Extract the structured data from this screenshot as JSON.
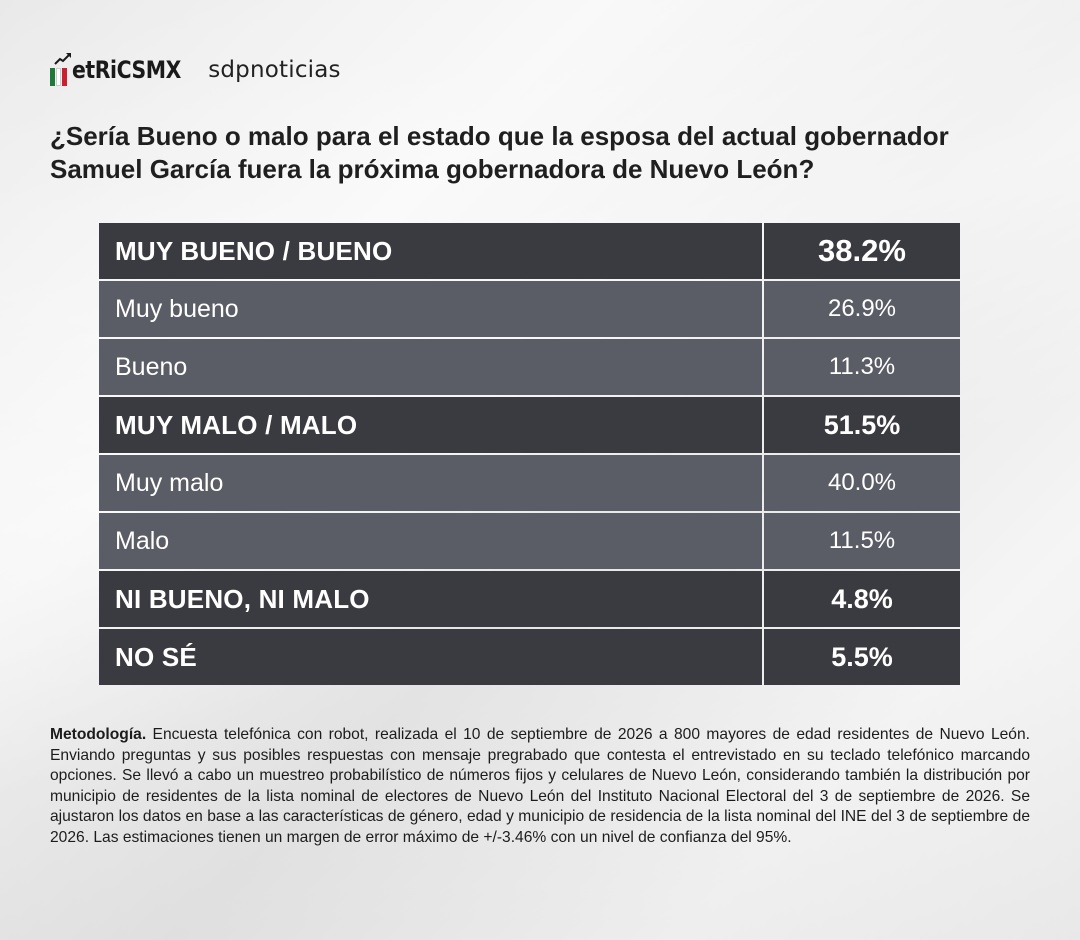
{
  "header": {
    "logo_metrics": "etRiCSMX",
    "logo_partner": "sdpnoticias"
  },
  "question": "¿Sería Bueno o malo para el estado que la esposa del actual gobernador Samuel García fuera la próxima gobernadora de Nuevo León?",
  "colors": {
    "group_row": "#3a3b40",
    "sub_row": "#5a5d66",
    "flag_green": "#1f7a3a",
    "flag_red": "#c8202f"
  },
  "chart_data": {
    "type": "table",
    "title": "¿Sería Bueno o malo para el estado que la esposa del actual gobernador Samuel García fuera la próxima gobernadora de Nuevo León?",
    "rows": [
      {
        "label": "MUY BUENO / BUENO",
        "value": "38.2%",
        "kind": "group"
      },
      {
        "label": "Muy bueno",
        "value": "26.9%",
        "kind": "sub"
      },
      {
        "label": "Bueno",
        "value": "11.3%",
        "kind": "sub"
      },
      {
        "label": "MUY MALO / MALO",
        "value": "51.5%",
        "kind": "group"
      },
      {
        "label": "Muy malo",
        "value": "40.0%",
        "kind": "sub"
      },
      {
        "label": "Malo",
        "value": "11.5%",
        "kind": "sub"
      },
      {
        "label": "NI BUENO, NI MALO",
        "value": "4.8%",
        "kind": "group"
      },
      {
        "label": "NO SÉ",
        "value": "5.5%",
        "kind": "group"
      }
    ]
  },
  "methodology": {
    "label": "Metodología.",
    "text": " Encuesta telefónica con robot, realizada el 10 de septiembre de 2026 a 800 mayores de edad residentes de Nuevo León. Enviando preguntas y sus posibles respuestas con mensaje pregrabado que contesta el entrevistado en su teclado telefónico marcando opciones. Se llevó a cabo un muestreo probabilístico de números fijos y celulares de Nuevo León, considerando también la distribución por municipio de residentes de la lista nominal de electores de Nuevo León del Instituto Nacional Electoral del 3 de septiembre de 2026. Se ajustaron los datos en base a las características de género, edad y municipio de residencia de la lista nominal del INE del 3 de septiembre de 2026. Las estimaciones tienen un margen de error máximo de +/-3.46% con un nivel de confianza del 95%."
  }
}
